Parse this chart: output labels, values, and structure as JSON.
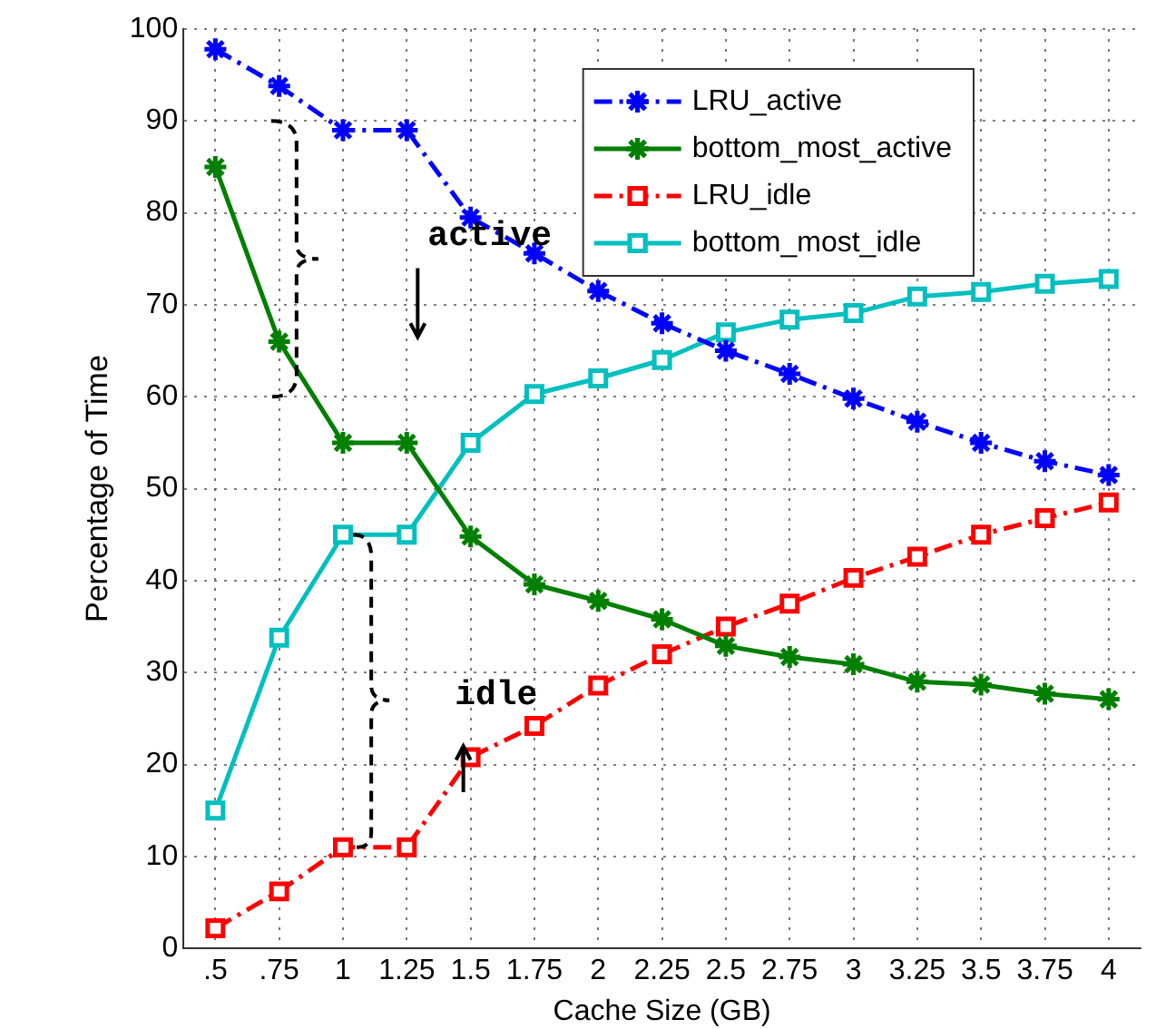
{
  "chart_data": {
    "type": "line",
    "xlabel": "Cache Size (GB)",
    "ylabel": "Percentage of Time",
    "categories": [
      ".5",
      ".75",
      "1",
      "1.25",
      "1.5",
      "1.75",
      "2",
      "2.25",
      "2.5",
      "2.75",
      "3",
      "3.25",
      "3.5",
      "3.75",
      "4"
    ],
    "ylim": [
      0,
      100
    ],
    "yticks": [
      0,
      10,
      20,
      30,
      40,
      50,
      60,
      70,
      80,
      90,
      100
    ],
    "grid": true,
    "legend": "top right",
    "series": [
      {
        "name": "LRU_active",
        "color": "#0000ff",
        "marker": "cross",
        "line_style": "dashed",
        "values": [
          97.8,
          93.8,
          89,
          89,
          79.5,
          75.6,
          71.5,
          68,
          65,
          62.5,
          59.8,
          57.3,
          55,
          53,
          51.5
        ]
      },
      {
        "name": "bottom_most_active",
        "color": "#007f00",
        "marker": "cross",
        "line_style": "solid",
        "values": [
          85,
          66,
          55,
          55,
          44.8,
          39.6,
          37.8,
          35.8,
          32.9,
          31.7,
          30.9,
          29,
          28.7,
          27.7,
          27.1
        ]
      },
      {
        "name": "LRU_idle",
        "color": "#ff0000",
        "marker": "square",
        "line_style": "dashed",
        "values": [
          2.2,
          6.2,
          11,
          11,
          20.8,
          24.2,
          28.6,
          32,
          35,
          37.5,
          40.3,
          42.6,
          45,
          46.8,
          48.5
        ]
      },
      {
        "name": "bottom_most_idle",
        "color": "#00bfbf",
        "marker": "square",
        "line_style": "solid",
        "values": [
          15,
          33.8,
          45,
          45,
          55,
          60.3,
          62,
          64,
          67,
          68.4,
          69.1,
          70.9,
          71.4,
          72.3,
          72.8
        ]
      }
    ],
    "annotations": [
      "active",
      "idle"
    ]
  }
}
